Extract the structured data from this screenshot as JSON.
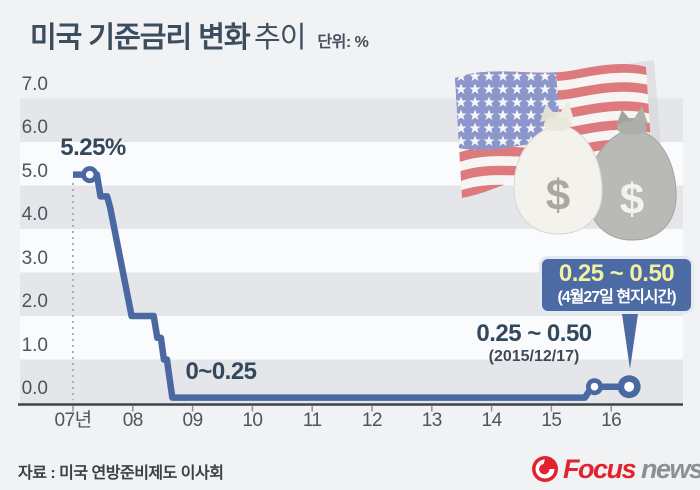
{
  "header": {
    "title_main": "미국 기준금리 변화",
    "title_tail": "추이",
    "unit_label": "단위: %"
  },
  "chart_data": {
    "type": "line",
    "title": "미국 기준금리 변화 추이",
    "unit": "%",
    "ylim": [
      0,
      7.5
    ],
    "grid": "alternating-horizontal-bands",
    "ytick_labels": [
      "7.0",
      "6.0",
      "5.0",
      "4.0",
      "3.0",
      "2.0",
      "1.0",
      "0.0"
    ],
    "ytick_values": [
      7.0,
      6.0,
      5.0,
      4.0,
      3.0,
      2.0,
      1.0,
      0.0
    ],
    "xtick_labels": [
      "07년",
      "08",
      "09",
      "10",
      "11",
      "12",
      "13",
      "14",
      "15",
      "16"
    ],
    "xtick_years": [
      2007,
      2008,
      2009,
      2010,
      2011,
      2012,
      2013,
      2014,
      2015,
      2016
    ],
    "series": [
      {
        "name": "미국 기준금리(%)",
        "points": [
          [
            2007.0,
            5.25
          ],
          [
            2007.4,
            5.25
          ],
          [
            2007.46,
            4.75
          ],
          [
            2007.57,
            4.75
          ],
          [
            2007.62,
            4.5
          ],
          [
            2007.98,
            2.0
          ],
          [
            2008.35,
            2.0
          ],
          [
            2008.41,
            1.5
          ],
          [
            2008.47,
            1.5
          ],
          [
            2008.52,
            1.0
          ],
          [
            2008.57,
            1.0
          ],
          [
            2008.66,
            0.125
          ],
          [
            2015.56,
            0.125
          ],
          [
            2015.68,
            0.375
          ],
          [
            2016.3,
            0.375
          ]
        ]
      }
    ],
    "markers": [
      {
        "x": 2007.28,
        "rate": 5.25,
        "size": "small"
      },
      {
        "x": 2015.72,
        "rate": 0.375,
        "size": "small"
      },
      {
        "x": 2016.3,
        "rate": 0.375,
        "size": "large"
      }
    ],
    "annotations": [
      {
        "id": "start-rate",
        "text": "5.25%"
      },
      {
        "id": "zero-range",
        "text": "0~0.25"
      },
      {
        "id": "dec-2015-hike",
        "text": "0.25 ~ 0.50",
        "subtext": "(2015/12/17)"
      },
      {
        "id": "apr-2016-decision",
        "text": "0.25 ~ 0.50",
        "subtext": "(4월27일 현지시간)",
        "style": "callout"
      }
    ]
  },
  "illustration": {
    "flag": "us-flag",
    "bags": [
      "money-bag-white",
      "money-bag-gray"
    ],
    "dollar_sign": "$"
  },
  "footer": {
    "source": "자료 : 미국 연방준비제도 이사회",
    "logo": {
      "brand": "Focus",
      "suffix": "news"
    }
  },
  "colors": {
    "line_blue": "#4a69a3",
    "callout_blue": "#4c6aa4",
    "callout_yellow": "#f3f0a2",
    "band_gray": "#e4e6ea",
    "band_white": "#fafbfc",
    "title_slate": "#3b4d5e",
    "logo_red": "#e0232e",
    "logo_gray": "#8b9097"
  }
}
